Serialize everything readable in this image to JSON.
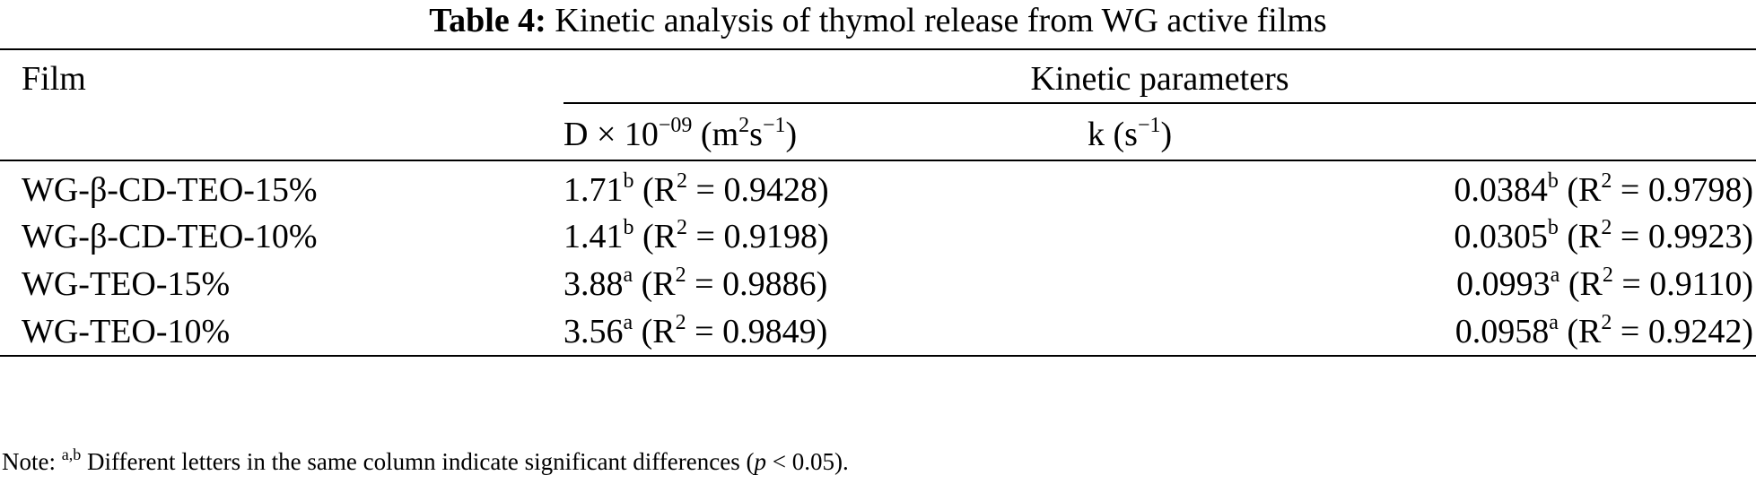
{
  "caption": {
    "label": "Table 4:",
    "text": "Kinetic analysis of thymol release from WG active films"
  },
  "header": {
    "film": "Film",
    "group": "Kinetic parameters",
    "col_d_base": "D × 10",
    "col_d_exp": "−09",
    "col_d_unit_open": " (m",
    "col_d_unit_exp1": "2",
    "col_d_unit_mid": "s",
    "col_d_unit_exp2": "−1",
    "col_d_unit_close": ")",
    "col_k_base": "k (s",
    "col_k_exp": "−1",
    "col_k_close": ")"
  },
  "rows": [
    {
      "film": "WG-β-CD-TEO-15%",
      "d_value": "1.71",
      "d_sup": "b",
      "d_r2": "0.9428",
      "k_value": "0.0384",
      "k_sup": "b",
      "k_r2": "0.9798"
    },
    {
      "film": "WG-β-CD-TEO-10%",
      "d_value": "1.41",
      "d_sup": "b",
      "d_r2": "0.9198",
      "k_value": "0.0305",
      "k_sup": "b",
      "k_r2": "0.9923"
    },
    {
      "film": "WG-TEO-15%",
      "d_value": "3.88",
      "d_sup": "a",
      "d_r2": "0.9886",
      "k_value": "0.0993",
      "k_sup": "a",
      "k_r2": "0.9110"
    },
    {
      "film": "WG-TEO-10%",
      "d_value": "3.56",
      "d_sup": "a",
      "d_r2": "0.9849",
      "k_value": "0.0958",
      "k_sup": "a",
      "k_r2": "0.9242"
    }
  ],
  "r2": {
    "open": " (R",
    "exp": "2",
    "eq": " = ",
    "close": ")"
  },
  "note": {
    "prefix": "Note: ",
    "sup": "a,b",
    "text": " Different letters in the same column indicate significant differences (",
    "p": "p",
    "rest": " < 0.05)."
  }
}
